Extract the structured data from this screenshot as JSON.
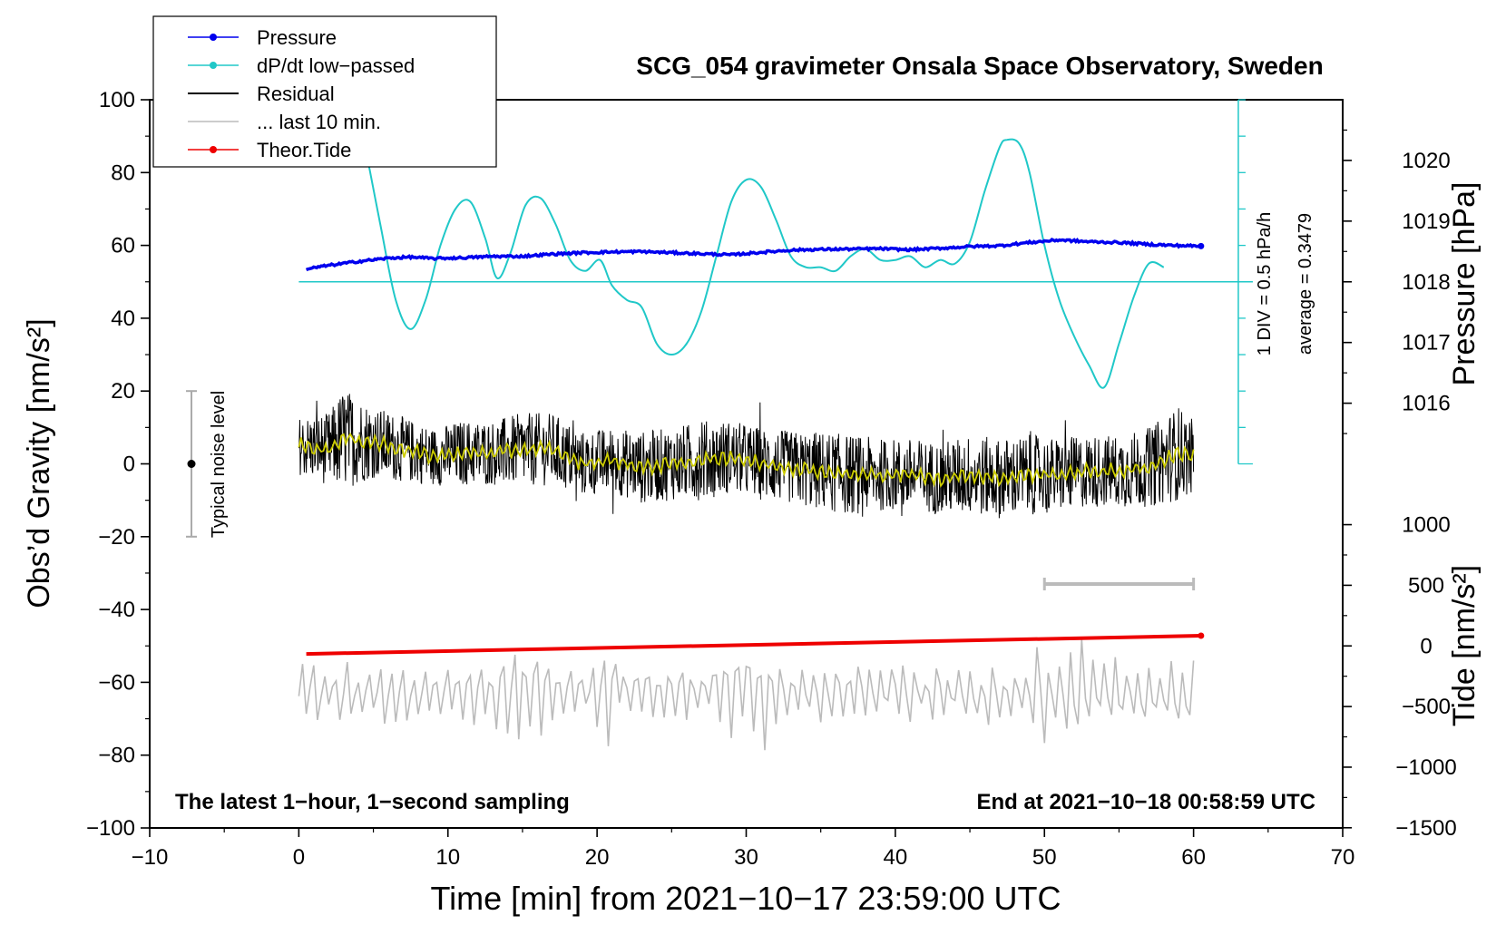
{
  "chart_data": {
    "type": "line",
    "title": "SCG_054 gravimeter Onsala Space Observatory, Sweden",
    "xlabel": "Time [min] from 2021−10−17 23:59:00 UTC",
    "ylabel_left": "Obs’d Gravity [nm/s²]",
    "ylabel_right_top": "Pressure [hPa]",
    "ylabel_right_bottom": "Tide [nm/s²]",
    "xlim": [
      -10,
      70
    ],
    "ylim": [
      -100,
      100
    ],
    "x_ticks": [
      -10,
      0,
      10,
      20,
      30,
      40,
      50,
      60,
      70
    ],
    "x_tick_labels": [
      "−10",
      "0",
      "10",
      "20",
      "30",
      "40",
      "50",
      "60",
      "70"
    ],
    "y_ticks": [
      -100,
      -80,
      -60,
      -40,
      -20,
      0,
      20,
      40,
      60,
      80,
      100
    ],
    "y_tick_labels": [
      "−100",
      "−80",
      "−60",
      "−40",
      "−20",
      "0",
      "20",
      "40",
      "60",
      "80",
      "100"
    ],
    "pressure_axis": {
      "ticks": [
        1016,
        1017,
        1018,
        1019,
        1020
      ],
      "tick_labels": [
        "1016",
        "1017",
        "1018",
        "1019",
        "1020"
      ],
      "left_value_at_1018": 50,
      "left_units_per_hPa": 16.67
    },
    "tide_axis": {
      "ticks": [
        -1500,
        -1000,
        -500,
        0,
        500,
        1000
      ],
      "tick_labels": [
        "−1500",
        "−1000",
        "−500",
        "0",
        "500",
        "1000"
      ],
      "left_units_per_1000": 33.3,
      "left_value_at_0": -50
    },
    "legend": [
      {
        "label": "Pressure",
        "color": "#0000ee",
        "marker": true
      },
      {
        "label": "dP/dt low−passed",
        "color": "#20c8c8",
        "marker": true
      },
      {
        "label": "Residual",
        "color": "#000000",
        "marker": false
      },
      {
        "label": "... last 10 min.",
        "color": "#bbbbbb",
        "marker": false
      },
      {
        "label": "Theor.Tide",
        "color": "#ee0000",
        "marker": true
      }
    ],
    "legend_position": "top-left",
    "annotations": {
      "bottom_left": "The latest 1−hour, 1−second sampling",
      "bottom_right": "End at 2021−10−18 00:58:59 UTC",
      "noise_label": "Typical noise level",
      "div_label": "1 DIV = 0.5 hPa/h",
      "average_label": "average = 0.3479"
    },
    "noise_bar": {
      "x": -7.2,
      "y_low": -20,
      "y_high": 20,
      "center": 0
    },
    "last10_bar": {
      "x_start": 50,
      "x_end": 60,
      "y": -33
    },
    "dpdt_scale": {
      "x": 63,
      "y_low": 0,
      "y_high": 100,
      "baseline": 50
    },
    "series": [
      {
        "name": "Pressure",
        "color": "#0000ee",
        "x": [
          0.5,
          2,
          4,
          6,
          7.5,
          9,
          11,
          13,
          15,
          17,
          19,
          21,
          23,
          25,
          27,
          29,
          31,
          33,
          35,
          37,
          39,
          41,
          43,
          45,
          47,
          49,
          51,
          53,
          55,
          57,
          58.5,
          60.5
        ],
        "y": [
          53.5,
          54.5,
          55.6,
          56.5,
          56.8,
          56.4,
          56.6,
          57.0,
          57.0,
          57.6,
          58.0,
          58.2,
          58.3,
          58.0,
          57.7,
          57.4,
          58.1,
          58.7,
          58.9,
          59.0,
          59.1,
          58.8,
          59.2,
          59.7,
          59.9,
          60.8,
          61.5,
          61.0,
          60.8,
          60.3,
          60.0,
          59.8
        ]
      },
      {
        "name": "dP/dt low−passed",
        "color": "#20c8c8",
        "x": [
          4.6,
          5.5,
          6.5,
          7.5,
          8.5,
          9.5,
          10.5,
          11.5,
          12.5,
          13.3,
          14.2,
          15.2,
          16.2,
          17.2,
          18.2,
          19.2,
          20.2,
          21,
          22,
          23,
          24,
          25,
          26,
          27,
          28,
          29,
          30,
          31,
          32,
          33,
          34,
          35,
          36,
          37,
          38,
          39,
          40,
          41,
          42,
          43,
          44,
          45,
          46,
          47,
          47.5,
          48.3,
          49,
          50,
          51,
          52,
          53,
          54,
          55,
          56,
          57,
          58
        ],
        "y": [
          84,
          65,
          45,
          37,
          45,
          60,
          70,
          72,
          62,
          51,
          58,
          71,
          73,
          66,
          56,
          53,
          56,
          49,
          45,
          43,
          33,
          30,
          33,
          42,
          57,
          72,
          78,
          76,
          67,
          57,
          54,
          54,
          53,
          57,
          59,
          56,
          56,
          57,
          54,
          56,
          55,
          61,
          75,
          87,
          89,
          88,
          80,
          60,
          45,
          35,
          27,
          21,
          33,
          46,
          55,
          54
        ]
      },
      {
        "name": "Residual smoothed",
        "color": "#cccc00",
        "x": [
          0,
          2,
          3,
          5,
          7,
          9,
          11,
          13,
          15,
          17,
          19,
          21,
          23,
          25,
          27,
          29,
          31,
          33,
          35,
          37,
          39,
          41,
          43,
          45,
          47,
          49,
          51,
          53,
          55,
          57,
          59,
          60
        ],
        "y": [
          5,
          4,
          7,
          6,
          4,
          2,
          3,
          3,
          4,
          4,
          0,
          1,
          -1,
          0,
          1,
          2,
          0,
          -1,
          -2,
          -3,
          -3,
          -3,
          -4,
          -3,
          -4,
          -3,
          -3,
          -2,
          -2,
          -1,
          3,
          2
        ]
      },
      {
        "name": "Theor.Tide",
        "color": "#ee0000",
        "x": [
          0.5,
          60.5
        ],
        "y": [
          -52.2,
          -47.2
        ]
      }
    ],
    "residual_envelope": {
      "x": [
        0,
        2,
        3,
        5,
        7,
        9,
        11,
        13,
        15,
        17,
        19,
        21,
        23,
        25,
        27,
        29,
        31,
        33,
        35,
        37,
        39,
        41,
        43,
        45,
        47,
        49,
        51,
        53,
        55,
        57,
        59,
        60
      ],
      "amplitude": [
        8,
        10,
        14,
        10,
        9,
        8,
        9,
        9,
        10,
        10,
        9,
        9,
        10,
        10,
        11,
        10,
        10,
        10,
        11,
        11,
        10,
        10,
        10,
        11,
        11,
        11,
        10,
        10,
        10,
        11,
        13,
        10
      ],
      "samples": 1800
    },
    "last10_trace": {
      "x_start": 0,
      "x_end": 60,
      "samples": 240,
      "baseline": -63,
      "amplitude": 9,
      "amplitude_burst": 17
    }
  }
}
